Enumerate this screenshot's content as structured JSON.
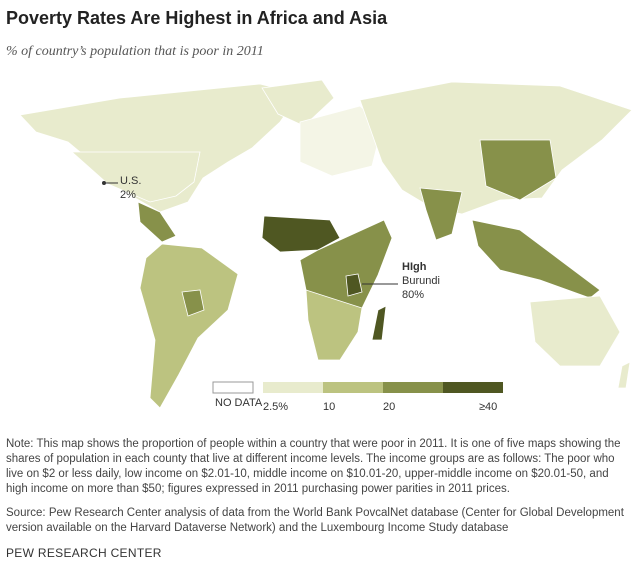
{
  "title": "Poverty Rates Are Highest in Africa and Asia",
  "subtitle": "% of country’s population that is poor in 2011",
  "annotations": [
    {
      "heading": "U.S.",
      "value": 2,
      "value_label": "2%"
    },
    {
      "heading": "HIgh",
      "name": "Burundi",
      "value": 80,
      "value_label": "80%"
    }
  ],
  "legend": {
    "no_data": "NO DATA",
    "ticks": [
      {
        "value": 2.5,
        "label": "2.5%"
      },
      10,
      20,
      {
        "value": 40,
        "label": "≥40"
      }
    ],
    "colors": [
      "#e8ebcd",
      "#bcc380",
      "#87914a",
      "#4f5722"
    ]
  },
  "note": "Note: This map shows the proportion of people within a country that were poor in 2011. It is one of five maps showing the shares of population in each county that live at different income levels. The income groups are as follows: The poor who live on $2 or less daily, low income on $2.01-10, middle income on $10.01-20, upper-middle income on $20.01-50, and high income on more than $50; figures expressed in 2011 purchasing power parities in 2011 prices.",
  "source": "Source: Pew Research Center analysis of data from the World Bank PovcalNet database (Center for Global Development version available on the Harvard Dataverse Network) and the Luxembourg Income Study database",
  "footer": "PEW RESEARCH CENTER"
}
